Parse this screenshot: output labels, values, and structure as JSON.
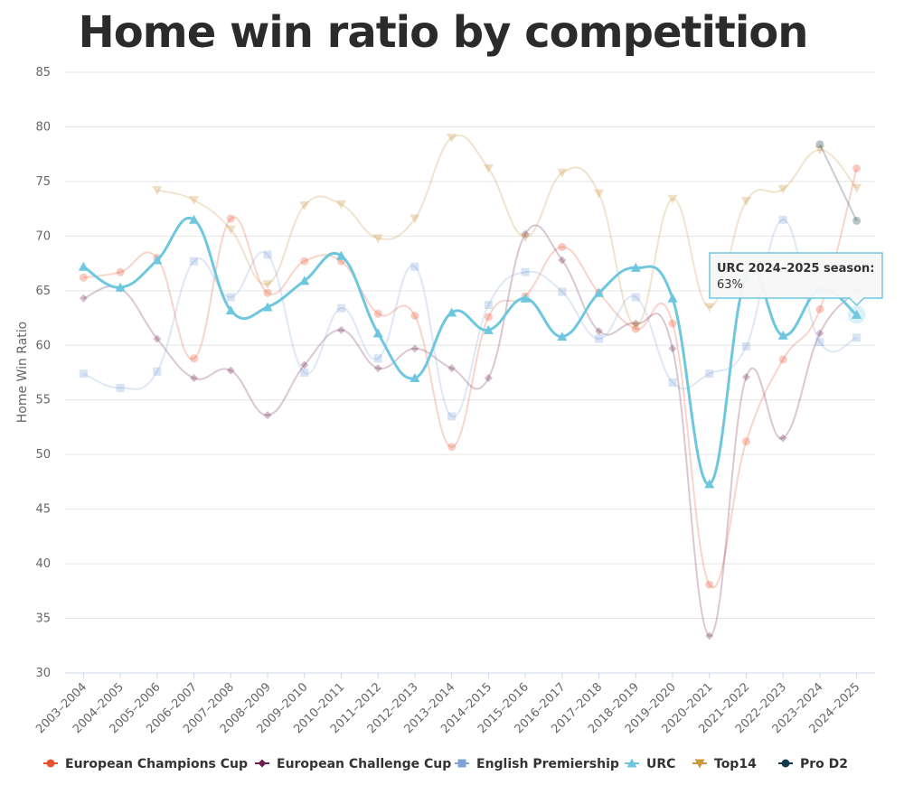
{
  "chart_data": {
    "type": "line",
    "title": "Home win ratio by competition",
    "ylabel": "Home Win Ratio",
    "xlabel": "",
    "ylim": [
      30,
      85
    ],
    "yticks": [
      30,
      35,
      40,
      45,
      50,
      55,
      60,
      65,
      70,
      75,
      80,
      85
    ],
    "grid": true,
    "legend_position": "bottom",
    "categories": [
      "2003–2004",
      "2004–2005",
      "2005–2006",
      "2006–2007",
      "2007–2008",
      "2008–2009",
      "2009–2010",
      "2010–2011",
      "2011–2012",
      "2012–2013",
      "2013–2014",
      "2014–2015",
      "2015–2016",
      "2016–2017",
      "2017–2018",
      "2018–2019",
      "2019–2020",
      "2020–2021",
      "2021–2022",
      "2022–2023",
      "2023–2024",
      "2024–2025"
    ],
    "series": [
      {
        "name": "European Champions Cup",
        "color": "#e8542f",
        "marker": "circle",
        "highlighted": false,
        "values": [
          66.2,
          66.7,
          68.0,
          58.8,
          71.6,
          64.8,
          67.7,
          67.7,
          62.9,
          62.7,
          50.7,
          62.6,
          64.5,
          69.0,
          64.8,
          61.5,
          62.0,
          38.1,
          51.2,
          58.7,
          63.3,
          76.2
        ]
      },
      {
        "name": "European Challenge Cup",
        "color": "#6b1e4e",
        "marker": "diamond",
        "highlighted": false,
        "values": [
          64.3,
          65.2,
          60.6,
          57.0,
          57.7,
          53.6,
          58.2,
          61.4,
          57.9,
          59.7,
          57.9,
          57.0,
          70.2,
          67.8,
          61.3,
          62.0,
          59.7,
          33.4,
          57.1,
          51.5,
          61.1,
          65.0
        ]
      },
      {
        "name": "English Premiership",
        "color": "#7fa3d6",
        "marker": "square",
        "highlighted": false,
        "values": [
          57.4,
          56.1,
          57.6,
          67.7,
          64.4,
          68.3,
          57.5,
          63.4,
          58.8,
          67.2,
          53.5,
          63.7,
          66.7,
          64.9,
          60.6,
          64.4,
          56.6,
          57.4,
          59.9,
          71.5,
          60.3,
          60.7
        ]
      },
      {
        "name": "URC",
        "color": "#6ec7df",
        "marker": "triangle",
        "highlighted": true,
        "values": [
          67.2,
          65.3,
          67.8,
          71.5,
          63.2,
          63.5,
          65.9,
          68.2,
          61.1,
          57.0,
          63.0,
          61.4,
          64.3,
          60.8,
          64.8,
          67.1,
          64.3,
          47.3,
          66.3,
          60.9,
          65.1,
          62.8
        ]
      },
      {
        "name": "Top14",
        "color": "#c9953f",
        "marker": "triangle-down",
        "highlighted": false,
        "values": [
          null,
          null,
          74.2,
          73.3,
          70.6,
          65.6,
          72.8,
          72.9,
          69.8,
          71.6,
          79.0,
          76.2,
          69.9,
          75.8,
          73.9,
          61.8,
          73.4,
          63.5,
          73.2,
          74.3,
          77.9,
          74.4
        ]
      },
      {
        "name": "Pro D2",
        "color": "#143a4e",
        "marker": "circle",
        "highlighted": false,
        "values": [
          null,
          null,
          null,
          null,
          null,
          null,
          null,
          null,
          null,
          null,
          null,
          null,
          null,
          null,
          null,
          null,
          null,
          null,
          null,
          null,
          78.4,
          71.4
        ]
      }
    ],
    "tooltip": {
      "series": "URC",
      "category": "2024–2025",
      "line1": "URC 2024–2025 season:",
      "line2": "63%"
    }
  }
}
